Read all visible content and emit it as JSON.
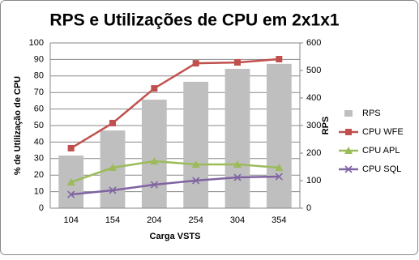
{
  "chart_data": {
    "type": "combo",
    "title": "RPS e Utilizações de CPU em 2x1x1",
    "x_label": "Carga VSTS",
    "y_label": "% de Utilização de CPU",
    "y2_label": "RPS",
    "categories": [
      "104",
      "154",
      "204",
      "254",
      "304",
      "354"
    ],
    "series": [
      {
        "name": "RPS",
        "type": "bar",
        "axis": "y2",
        "color": "#bfbfbf",
        "values": [
          191,
          282,
          394,
          459,
          506,
          524
        ]
      },
      {
        "name": "CPU WFE",
        "type": "line",
        "marker": "square",
        "color": "#c0504d",
        "values": [
          36.3,
          51.5,
          72.5,
          87.7,
          88.2,
          90.2
        ]
      },
      {
        "name": "CPU APL",
        "type": "line",
        "marker": "triangle",
        "color": "#9bbb59",
        "values": [
          15.7,
          24.5,
          28.4,
          26.5,
          26.5,
          24.5
        ]
      },
      {
        "name": "CPU SQL",
        "type": "line",
        "marker": "x",
        "color": "#8064a2",
        "values": [
          8.3,
          10.8,
          14.2,
          16.7,
          18.6,
          19.1
        ]
      }
    ],
    "ylim": [
      0,
      100
    ],
    "yticks": [
      0,
      10,
      20,
      30,
      40,
      50,
      60,
      70,
      80,
      90,
      100
    ],
    "y2lim": [
      0,
      600
    ],
    "y2ticks": [
      0,
      100,
      200,
      300,
      400,
      500,
      600
    ],
    "grid": true,
    "legend": "right"
  }
}
